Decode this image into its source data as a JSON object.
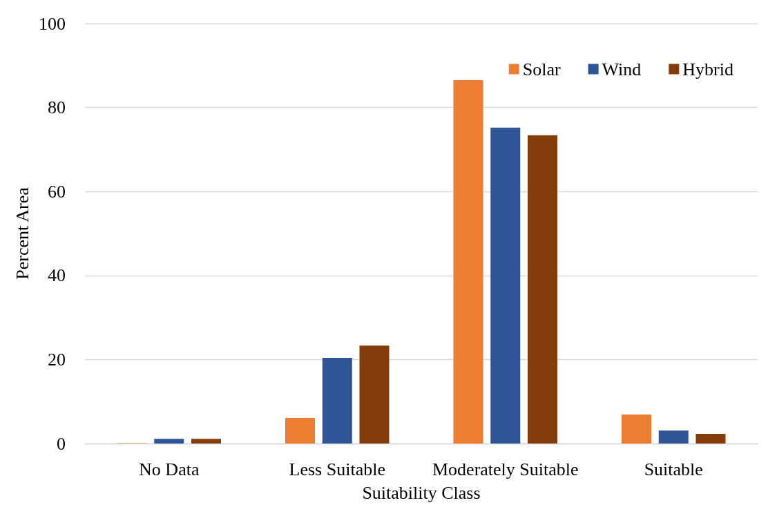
{
  "chart_data": {
    "type": "bar",
    "xlabel": "Suitability Class",
    "ylabel": "Percent Area",
    "categories": [
      "No Data",
      "Less Suitable",
      "Moderately Suitable",
      "Suitable"
    ],
    "series": [
      {
        "name": "Solar",
        "color": "#ed7d31",
        "values": [
          0.1,
          6.1,
          86.5,
          6.9
        ]
      },
      {
        "name": "Wind",
        "color": "#2f5597",
        "values": [
          1.1,
          20.4,
          75.2,
          3.1
        ]
      },
      {
        "name": "Hybrid",
        "color": "#843c0c",
        "values": [
          1.1,
          23.3,
          73.4,
          2.3
        ]
      }
    ],
    "ylim": [
      0,
      100
    ],
    "yticks": [
      0,
      20,
      40,
      60,
      80,
      100
    ],
    "grid": "y",
    "legend": "top right"
  }
}
